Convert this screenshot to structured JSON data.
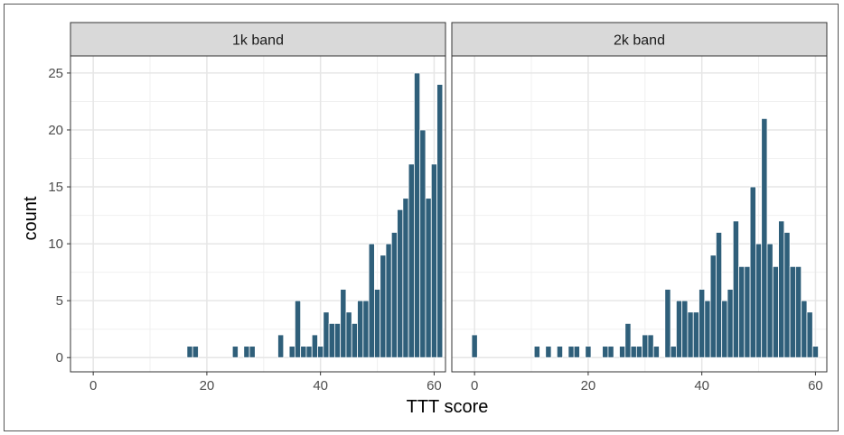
{
  "chart_data": {
    "type": "bar",
    "xlabel": "TTT score",
    "ylabel": "count",
    "xlim": [
      -4,
      62
    ],
    "ylim": [
      -1.25,
      26.5
    ],
    "xticks": [
      0,
      20,
      40,
      60
    ],
    "yticks": [
      0,
      5,
      10,
      15,
      20,
      25
    ],
    "bin_width": 1,
    "bar_color": "#2f5f7a",
    "grid": true,
    "panels": [
      {
        "title": "1k band",
        "bins": [
          [
            17,
            1
          ],
          [
            18,
            1
          ],
          [
            25,
            1
          ],
          [
            27,
            1
          ],
          [
            28,
            1
          ],
          [
            33,
            2
          ],
          [
            35,
            1
          ],
          [
            36,
            5
          ],
          [
            37,
            1
          ],
          [
            38,
            1
          ],
          [
            39,
            2
          ],
          [
            40,
            1
          ],
          [
            41,
            4
          ],
          [
            42,
            3
          ],
          [
            43,
            3
          ],
          [
            44,
            6
          ],
          [
            45,
            4
          ],
          [
            46,
            3
          ],
          [
            47,
            5
          ],
          [
            48,
            5
          ],
          [
            49,
            10
          ],
          [
            50,
            6
          ],
          [
            51,
            9
          ],
          [
            52,
            10
          ],
          [
            53,
            11
          ],
          [
            54,
            13
          ],
          [
            55,
            14
          ],
          [
            56,
            17
          ],
          [
            57,
            25
          ],
          [
            58,
            20
          ],
          [
            59,
            14
          ],
          [
            60,
            17
          ],
          [
            61,
            24
          ]
        ]
      },
      {
        "title": "2k band",
        "bins": [
          [
            0,
            2
          ],
          [
            11,
            1
          ],
          [
            13,
            1
          ],
          [
            15,
            1
          ],
          [
            17,
            1
          ],
          [
            18,
            1
          ],
          [
            20,
            1
          ],
          [
            23,
            1
          ],
          [
            24,
            1
          ],
          [
            26,
            1
          ],
          [
            27,
            3
          ],
          [
            28,
            1
          ],
          [
            29,
            1
          ],
          [
            30,
            2
          ],
          [
            31,
            2
          ],
          [
            32,
            1
          ],
          [
            34,
            6
          ],
          [
            35,
            1
          ],
          [
            36,
            5
          ],
          [
            37,
            5
          ],
          [
            38,
            4
          ],
          [
            39,
            4
          ],
          [
            40,
            6
          ],
          [
            41,
            5
          ],
          [
            42,
            9
          ],
          [
            43,
            11
          ],
          [
            44,
            5
          ],
          [
            45,
            6
          ],
          [
            46,
            12
          ],
          [
            47,
            8
          ],
          [
            48,
            8
          ],
          [
            49,
            15
          ],
          [
            50,
            10
          ],
          [
            51,
            21
          ],
          [
            52,
            10
          ],
          [
            53,
            8
          ],
          [
            54,
            12
          ],
          [
            55,
            11
          ],
          [
            56,
            8
          ],
          [
            57,
            8
          ],
          [
            58,
            5
          ],
          [
            59,
            4
          ],
          [
            60,
            1
          ]
        ]
      }
    ]
  }
}
